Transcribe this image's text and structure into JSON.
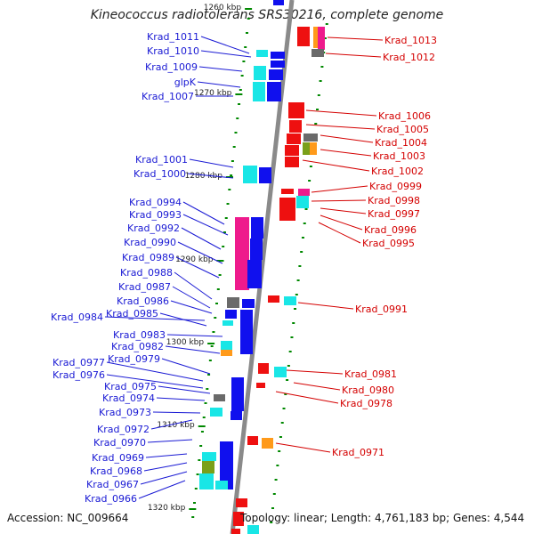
{
  "title": "Kineococcus radiotolerans SRS30216, complete genome",
  "footer": {
    "accession": "Accession: NC_009664",
    "topology": "Topology: linear; Length: 4,761,183 bp; Genes: 4,544"
  },
  "colors": {
    "backbone": "#8a8a8a",
    "left_label": "#1a1ad4",
    "right_label": "#d40000",
    "tick": "#008800",
    "blue_gene": "#1010ee",
    "red_gene": "#ee1010",
    "cyan": "#19e6e6",
    "magenta": "#ee1a8c",
    "orange": "#ff9a1a",
    "olive": "#7aa01a",
    "gray": "#6a6a6a"
  },
  "scale_ticks": [
    "1260 kbp",
    "1270 kbp",
    "1280 kbp",
    "1290 kbp",
    "1300 kbp",
    "1310 kbp",
    "1320 kbp"
  ],
  "left_labels": [
    "Krad_1011",
    "Krad_1010",
    "Krad_1009",
    "glpK",
    "Krad_1007",
    "Krad_1001",
    "Krad_1000",
    "Krad_0994",
    "Krad_0993",
    "Krad_0992",
    "Krad_0990",
    "Krad_0989",
    "Krad_0988",
    "Krad_0987",
    "Krad_0986",
    "Krad_0984",
    "Krad_0985",
    "Krad_0983",
    "Krad_0982",
    "Krad_0979",
    "Krad_0977",
    "Krad_0976",
    "Krad_0975",
    "Krad_0974",
    "Krad_0973",
    "Krad_0972",
    "Krad_0970",
    "Krad_0969",
    "Krad_0968",
    "Krad_0967",
    "Krad_0966"
  ],
  "right_labels": [
    "Krad_1013",
    "Krad_1012",
    "Krad_1006",
    "Krad_1005",
    "Krad_1004",
    "Krad_1003",
    "Krad_1002",
    "Krad_0999",
    "Krad_0998",
    "Krad_0997",
    "Krad_0996",
    "Krad_0995",
    "Krad_0991",
    "Krad_0981",
    "Krad_0980",
    "Krad_0978",
    "Krad_0971"
  ]
}
